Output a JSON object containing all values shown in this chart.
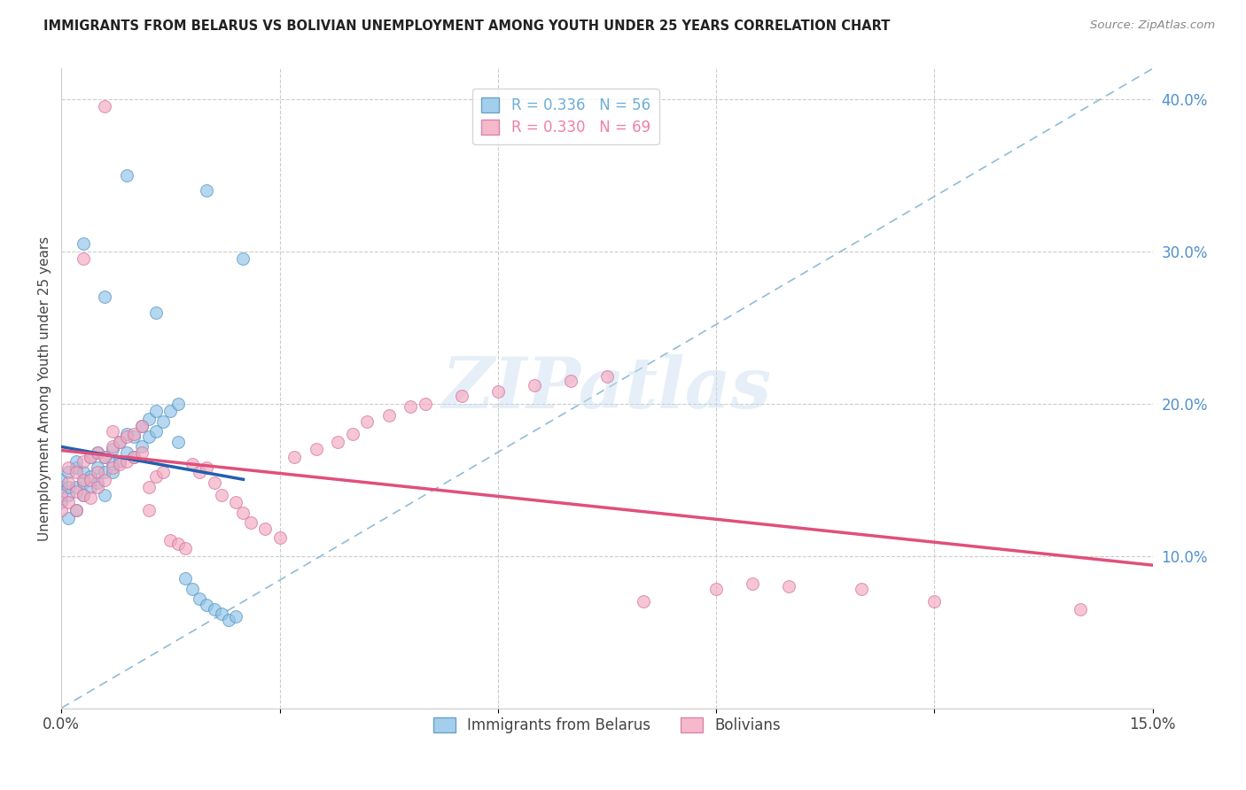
{
  "title": "IMMIGRANTS FROM BELARUS VS BOLIVIAN UNEMPLOYMENT AMONG YOUTH UNDER 25 YEARS CORRELATION CHART",
  "source": "Source: ZipAtlas.com",
  "ylabel": "Unemployment Among Youth under 25 years",
  "x_min": 0.0,
  "x_max": 0.15,
  "y_min": 0.0,
  "y_max": 0.42,
  "y_ticks_right": [
    0.1,
    0.2,
    0.3,
    0.4
  ],
  "y_tick_labels_right": [
    "10.0%",
    "20.0%",
    "30.0%",
    "40.0%"
  ],
  "legend_entries": [
    {
      "label": "R = 0.336   N = 56",
      "color": "#6baed6"
    },
    {
      "label": "R = 0.330   N = 69",
      "color": "#f080a0"
    }
  ],
  "legend_labels_bottom": [
    "Immigrants from Belarus",
    "Bolivians"
  ],
  "watermark": "ZIPatlas",
  "blue_color": "#8ec4e8",
  "pink_color": "#f4a8be",
  "blue_line_color": "#2060b0",
  "pink_line_color": "#e0507a",
  "diag_line_color": "#90bcd8",
  "blue_scatter_x": [
    0.0,
    0.0,
    0.0,
    0.001,
    0.001,
    0.001,
    0.001,
    0.002,
    0.002,
    0.002,
    0.002,
    0.003,
    0.003,
    0.003,
    0.004,
    0.004,
    0.004,
    0.005,
    0.005,
    0.005,
    0.006,
    0.006,
    0.006,
    0.007,
    0.007,
    0.007,
    0.008,
    0.008,
    0.009,
    0.009,
    0.01,
    0.01,
    0.011,
    0.011,
    0.012,
    0.012,
    0.013,
    0.013,
    0.014,
    0.015,
    0.016,
    0.016,
    0.017,
    0.018,
    0.019,
    0.02,
    0.021,
    0.022,
    0.023,
    0.024,
    0.006,
    0.009,
    0.013,
    0.02,
    0.025,
    0.003
  ],
  "blue_scatter_y": [
    0.135,
    0.145,
    0.15,
    0.125,
    0.14,
    0.155,
    0.145,
    0.13,
    0.145,
    0.158,
    0.162,
    0.14,
    0.148,
    0.155,
    0.145,
    0.152,
    0.165,
    0.148,
    0.158,
    0.168,
    0.155,
    0.165,
    0.14,
    0.16,
    0.17,
    0.155,
    0.162,
    0.175,
    0.168,
    0.18,
    0.165,
    0.178,
    0.172,
    0.185,
    0.178,
    0.19,
    0.182,
    0.195,
    0.188,
    0.195,
    0.2,
    0.175,
    0.085,
    0.078,
    0.072,
    0.068,
    0.065,
    0.062,
    0.058,
    0.06,
    0.27,
    0.35,
    0.26,
    0.34,
    0.295,
    0.305
  ],
  "pink_scatter_x": [
    0.0,
    0.0,
    0.001,
    0.001,
    0.001,
    0.002,
    0.002,
    0.002,
    0.003,
    0.003,
    0.003,
    0.004,
    0.004,
    0.004,
    0.005,
    0.005,
    0.005,
    0.006,
    0.006,
    0.007,
    0.007,
    0.007,
    0.008,
    0.008,
    0.009,
    0.009,
    0.01,
    0.01,
    0.011,
    0.011,
    0.012,
    0.012,
    0.013,
    0.014,
    0.015,
    0.016,
    0.017,
    0.018,
    0.019,
    0.02,
    0.021,
    0.022,
    0.024,
    0.025,
    0.026,
    0.028,
    0.03,
    0.032,
    0.035,
    0.038,
    0.04,
    0.042,
    0.045,
    0.048,
    0.05,
    0.055,
    0.06,
    0.065,
    0.07,
    0.075,
    0.08,
    0.09,
    0.095,
    0.1,
    0.11,
    0.12,
    0.14,
    0.003,
    0.006
  ],
  "pink_scatter_y": [
    0.13,
    0.14,
    0.135,
    0.148,
    0.158,
    0.13,
    0.142,
    0.155,
    0.14,
    0.15,
    0.162,
    0.138,
    0.15,
    0.165,
    0.145,
    0.155,
    0.168,
    0.15,
    0.165,
    0.158,
    0.172,
    0.182,
    0.16,
    0.175,
    0.162,
    0.178,
    0.165,
    0.18,
    0.168,
    0.185,
    0.13,
    0.145,
    0.152,
    0.155,
    0.11,
    0.108,
    0.105,
    0.16,
    0.155,
    0.158,
    0.148,
    0.14,
    0.135,
    0.128,
    0.122,
    0.118,
    0.112,
    0.165,
    0.17,
    0.175,
    0.18,
    0.188,
    0.192,
    0.198,
    0.2,
    0.205,
    0.208,
    0.212,
    0.215,
    0.218,
    0.07,
    0.078,
    0.082,
    0.08,
    0.078,
    0.07,
    0.065,
    0.295,
    0.395
  ]
}
